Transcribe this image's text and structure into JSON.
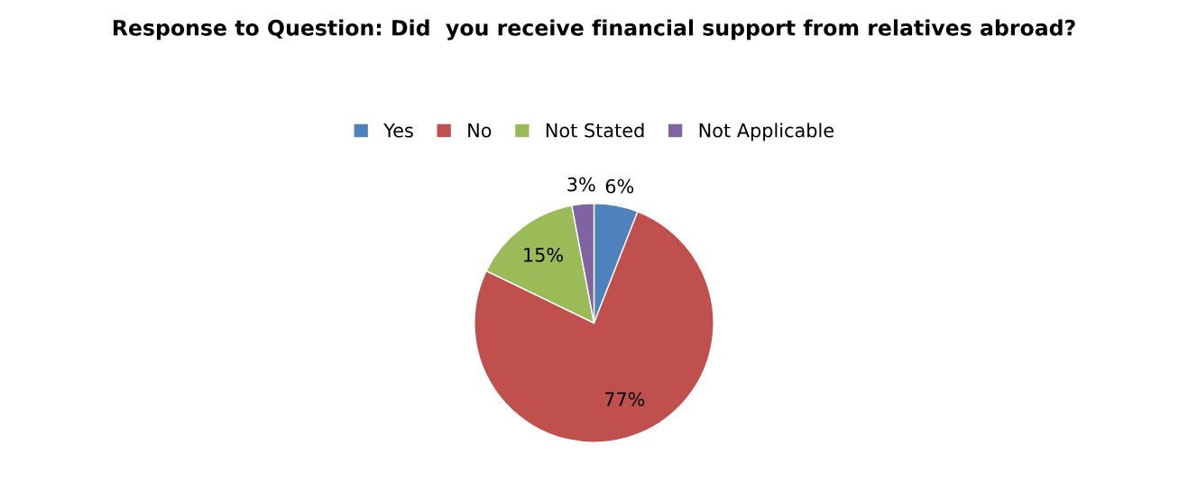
{
  "chart_data": {
    "type": "pie",
    "title": "Response to Question: Did  you receive financial support from relatives abroad?",
    "categories": [
      "Yes",
      "No",
      "Not Stated",
      "Not Applicable"
    ],
    "values": [
      6,
      77,
      15,
      3
    ],
    "colors": [
      "#4f81bd",
      "#c0504d",
      "#9bbb59",
      "#8064a2"
    ],
    "value_labels": [
      "6%",
      "77%",
      "15%",
      "3%"
    ],
    "legend": "top"
  }
}
